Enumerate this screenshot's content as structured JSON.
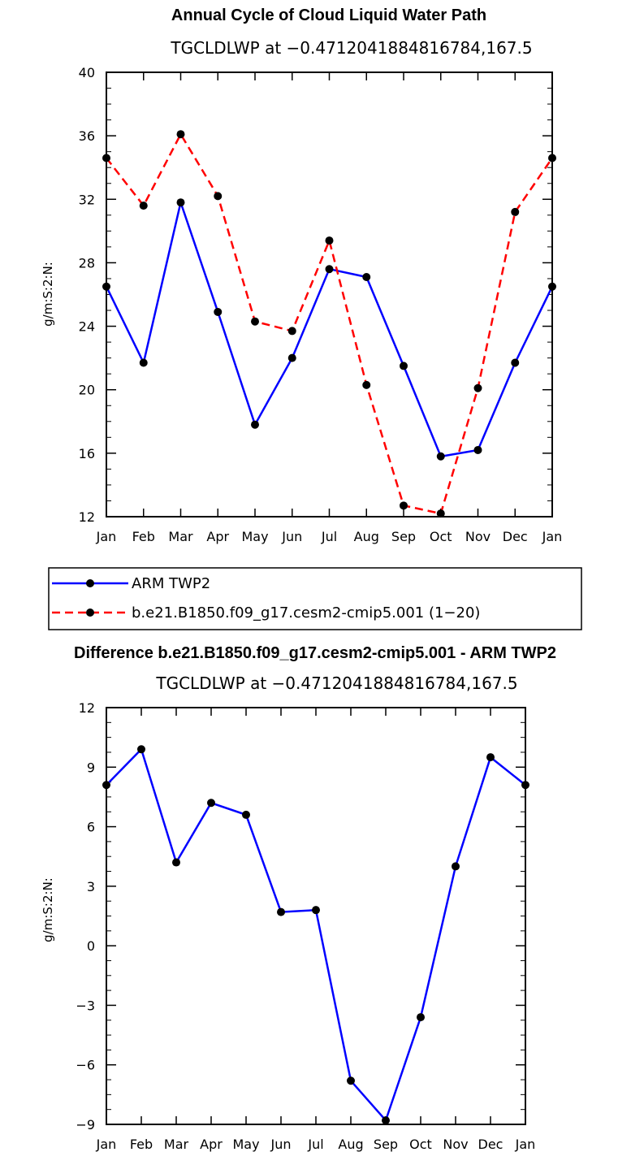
{
  "chart_data": [
    {
      "type": "line",
      "title": "Annual Cycle of Cloud Liquid Water Path",
      "subtitle": "TGCLDLWP at −0.4712041884816784,167.5",
      "ylabel": "g/m:S:2:N:",
      "xlabel": "",
      "categories": [
        "Jan",
        "Feb",
        "Mar",
        "Apr",
        "May",
        "Jun",
        "Jul",
        "Aug",
        "Sep",
        "Oct",
        "Nov",
        "Dec",
        "Jan"
      ],
      "ylim": [
        12,
        40
      ],
      "yticks": [
        12,
        16,
        20,
        24,
        28,
        32,
        36,
        40
      ],
      "series": [
        {
          "name": "ARM TWP2",
          "color": "#0000ff",
          "dash": "solid",
          "values": [
            26.5,
            21.7,
            31.8,
            24.9,
            17.8,
            22.0,
            27.6,
            27.1,
            21.5,
            15.8,
            16.2,
            21.7,
            26.5
          ]
        },
        {
          "name": "b.e21.B1850.f09_g17.cesm2-cmip5.001 (1−20)",
          "color": "#ff0000",
          "dash": "dashed",
          "values": [
            34.6,
            31.6,
            36.1,
            32.2,
            24.3,
            23.7,
            29.4,
            20.3,
            12.7,
            12.2,
            20.1,
            31.2,
            34.6
          ]
        }
      ]
    },
    {
      "type": "line",
      "title": "Difference b.e21.B1850.f09_g17.cesm2-cmip5.001 - ARM TWP2",
      "subtitle": "TGCLDLWP at −0.4712041884816784,167.5",
      "ylabel": "g/m:S:2:N:",
      "xlabel": "",
      "categories": [
        "Jan",
        "Feb",
        "Mar",
        "Apr",
        "May",
        "Jun",
        "Jul",
        "Aug",
        "Sep",
        "Oct",
        "Nov",
        "Dec",
        "Jan"
      ],
      "ylim": [
        -9,
        12
      ],
      "yticks": [
        -9,
        -6,
        -3,
        0,
        3,
        6,
        9,
        12
      ],
      "yticklabels": [
        "−9",
        "−6",
        "−3",
        "0",
        "3",
        "6",
        "9",
        "12"
      ],
      "series": [
        {
          "name": "Difference",
          "color": "#0000ff",
          "dash": "solid",
          "values": [
            8.1,
            9.9,
            4.2,
            7.2,
            6.6,
            1.7,
            1.8,
            -6.8,
            -8.8,
            -3.6,
            4.0,
            9.5,
            8.1
          ]
        }
      ]
    }
  ]
}
